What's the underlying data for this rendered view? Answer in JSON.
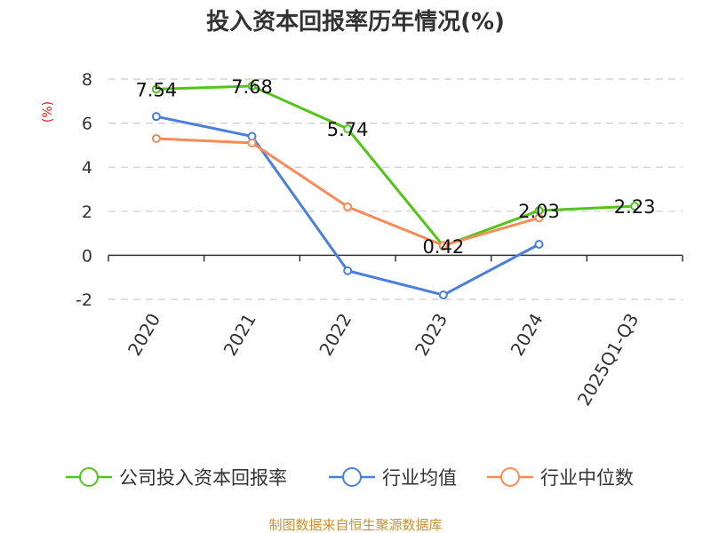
{
  "chart_data": {
    "type": "line",
    "title": "投入资本回报率历年情况(%)",
    "ylabel": "(%)",
    "xlabel": "",
    "categories": [
      "2020",
      "2021",
      "2022",
      "2023",
      "2024",
      "2025Q1-Q3"
    ],
    "ylim": [
      -2,
      8
    ],
    "yticks": [
      -2,
      0,
      2,
      4,
      6,
      8
    ],
    "grid": true,
    "legend_position": "bottom",
    "series": [
      {
        "name": "公司投入资本回报率",
        "color": "#52c41a",
        "values": [
          7.54,
          7.68,
          5.74,
          0.42,
          2.03,
          2.23
        ],
        "labels": [
          "7.54",
          "7.68",
          "5.74",
          "0.42",
          "2.03",
          "2.23"
        ]
      },
      {
        "name": "行业均值",
        "color": "#4a7fdc",
        "values": [
          6.3,
          5.4,
          -0.7,
          -1.8,
          0.5,
          null
        ]
      },
      {
        "name": "行业中位数",
        "color": "#f78c5a",
        "values": [
          5.3,
          5.1,
          2.2,
          0.45,
          1.7,
          null
        ]
      }
    ],
    "source": "制图数据来自恒生聚源数据库"
  }
}
